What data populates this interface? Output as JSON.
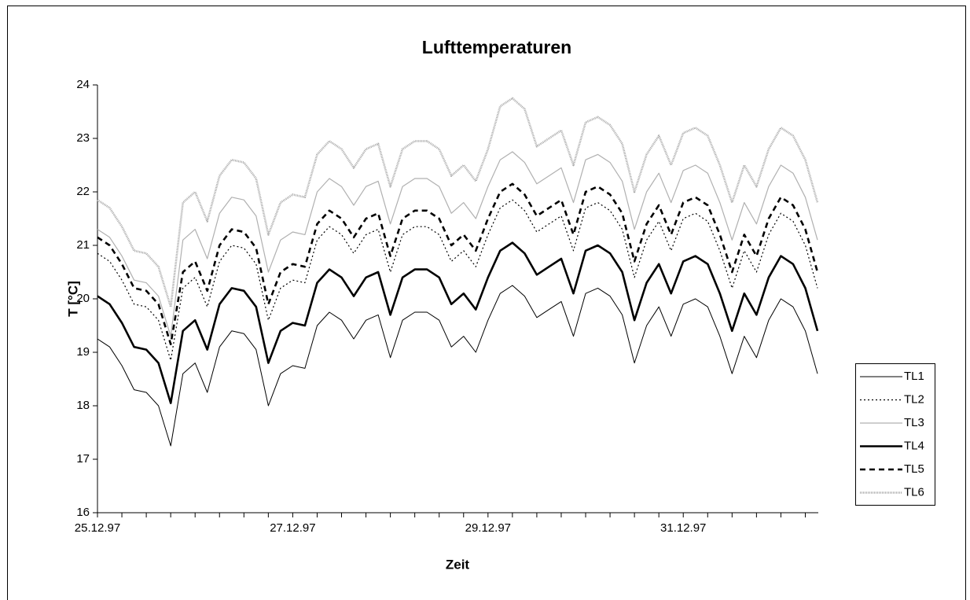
{
  "chart_data": {
    "type": "line",
    "title": "Lufttemperaturen",
    "xlabel": "Zeit",
    "ylabel": "T [°C]",
    "x": [
      "25.12.97",
      null,
      null,
      null,
      null,
      null,
      null,
      null,
      null,
      null,
      null,
      null,
      null,
      null,
      null,
      null,
      "27.12.97",
      null,
      null,
      null,
      null,
      null,
      null,
      null,
      null,
      null,
      null,
      null,
      null,
      null,
      null,
      null,
      "29.12.97",
      null,
      null,
      null,
      null,
      null,
      null,
      null,
      null,
      null,
      null,
      null,
      null,
      null,
      null,
      null,
      "31.12.97",
      null,
      null,
      null,
      null,
      null,
      null,
      null,
      null,
      null,
      null,
      null
    ],
    "ylim": [
      16,
      24
    ],
    "yticks": [
      16,
      17,
      18,
      19,
      20,
      21,
      22,
      23,
      24
    ],
    "legend": "right",
    "series": [
      {
        "name": "TL1",
        "color": "#000000",
        "width": 1,
        "dash": "none",
        "values": [
          19.25,
          19.1,
          18.75,
          18.3,
          18.25,
          18.0,
          17.25,
          18.6,
          18.8,
          18.25,
          19.1,
          19.4,
          19.35,
          19.05,
          18.0,
          18.6,
          18.75,
          18.7,
          19.5,
          19.75,
          19.6,
          19.25,
          19.6,
          19.7,
          18.9,
          19.6,
          19.75,
          19.75,
          19.6,
          19.1,
          19.3,
          19.0,
          19.6,
          20.1,
          20.25,
          20.05,
          19.65,
          19.8,
          19.95,
          19.3,
          20.1,
          20.2,
          20.05,
          19.7,
          18.8,
          19.5,
          19.85,
          19.3,
          19.9,
          20.0,
          19.85,
          19.3,
          18.6,
          19.3,
          18.9,
          19.6,
          20.0,
          19.85,
          19.4,
          18.6
        ]
      },
      {
        "name": "TL2",
        "color": "#000000",
        "width": 1.2,
        "dash": "2,3",
        "values": [
          20.85,
          20.7,
          20.35,
          19.9,
          19.85,
          19.6,
          18.85,
          20.2,
          20.4,
          19.85,
          20.7,
          21.0,
          20.95,
          20.65,
          19.6,
          20.2,
          20.35,
          20.3,
          21.1,
          21.35,
          21.2,
          20.85,
          21.2,
          21.3,
          20.5,
          21.2,
          21.35,
          21.35,
          21.2,
          20.7,
          20.9,
          20.6,
          21.2,
          21.7,
          21.85,
          21.65,
          21.25,
          21.4,
          21.55,
          20.9,
          21.7,
          21.8,
          21.65,
          21.3,
          20.4,
          21.1,
          21.45,
          20.9,
          21.5,
          21.6,
          21.45,
          20.9,
          20.2,
          20.9,
          20.5,
          21.2,
          21.6,
          21.45,
          21.0,
          20.2
        ]
      },
      {
        "name": "TL3",
        "color": "#b0b0b0",
        "width": 1.2,
        "dash": "none",
        "values": [
          21.3,
          21.15,
          20.8,
          20.35,
          20.3,
          20.05,
          19.3,
          21.1,
          21.3,
          20.75,
          21.6,
          21.9,
          21.85,
          21.55,
          20.5,
          21.1,
          21.25,
          21.2,
          22.0,
          22.25,
          22.1,
          21.75,
          22.1,
          22.2,
          21.4,
          22.1,
          22.25,
          22.25,
          22.1,
          21.6,
          21.8,
          21.5,
          22.1,
          22.6,
          22.75,
          22.55,
          22.15,
          22.3,
          22.45,
          21.8,
          22.6,
          22.7,
          22.55,
          22.2,
          21.3,
          22.0,
          22.35,
          21.8,
          22.4,
          22.5,
          22.35,
          21.8,
          21.1,
          21.8,
          21.4,
          22.1,
          22.5,
          22.35,
          21.9,
          21.1
        ]
      },
      {
        "name": "TL4",
        "color": "#000000",
        "width": 2.6,
        "dash": "none",
        "values": [
          20.05,
          19.9,
          19.55,
          19.1,
          19.05,
          18.8,
          18.05,
          19.4,
          19.6,
          19.05,
          19.9,
          20.2,
          20.15,
          19.85,
          18.8,
          19.4,
          19.55,
          19.5,
          20.3,
          20.55,
          20.4,
          20.05,
          20.4,
          20.5,
          19.7,
          20.4,
          20.55,
          20.55,
          20.4,
          19.9,
          20.1,
          19.8,
          20.4,
          20.9,
          21.05,
          20.85,
          20.45,
          20.6,
          20.75,
          20.1,
          20.9,
          21.0,
          20.85,
          20.5,
          19.6,
          20.3,
          20.65,
          20.1,
          20.7,
          20.8,
          20.65,
          20.1,
          19.4,
          20.1,
          19.7,
          20.4,
          20.8,
          20.65,
          20.2,
          19.4
        ]
      },
      {
        "name": "TL5",
        "color": "#000000",
        "width": 2.6,
        "dash": "7,5",
        "values": [
          21.15,
          21.0,
          20.65,
          20.2,
          20.15,
          19.9,
          19.15,
          20.5,
          20.7,
          20.15,
          21.0,
          21.3,
          21.25,
          20.95,
          19.9,
          20.5,
          20.65,
          20.6,
          21.4,
          21.65,
          21.5,
          21.15,
          21.5,
          21.6,
          20.8,
          21.5,
          21.65,
          21.65,
          21.5,
          21.0,
          21.2,
          20.9,
          21.5,
          22.0,
          22.15,
          21.95,
          21.55,
          21.7,
          21.85,
          21.2,
          22.0,
          22.1,
          21.95,
          21.6,
          20.7,
          21.4,
          21.75,
          21.2,
          21.8,
          21.9,
          21.75,
          21.2,
          20.5,
          21.2,
          20.8,
          21.5,
          21.9,
          21.75,
          21.3,
          20.5
        ]
      },
      {
        "name": "TL6",
        "color": "#a8a8a8",
        "width": 2.6,
        "dash": "1,1",
        "values": [
          21.85,
          21.7,
          21.35,
          20.9,
          20.85,
          20.6,
          19.85,
          21.8,
          22.0,
          21.45,
          22.3,
          22.6,
          22.55,
          22.25,
          21.2,
          21.8,
          21.95,
          21.9,
          22.7,
          22.95,
          22.8,
          22.45,
          22.8,
          22.9,
          22.1,
          22.8,
          22.95,
          22.95,
          22.8,
          22.3,
          22.5,
          22.2,
          22.8,
          23.6,
          23.75,
          23.55,
          22.85,
          23.0,
          23.15,
          22.5,
          23.3,
          23.4,
          23.25,
          22.9,
          22.0,
          22.7,
          23.05,
          22.5,
          23.1,
          23.2,
          23.05,
          22.5,
          21.8,
          22.5,
          22.1,
          22.8,
          23.2,
          23.05,
          22.6,
          21.8
        ]
      }
    ]
  }
}
